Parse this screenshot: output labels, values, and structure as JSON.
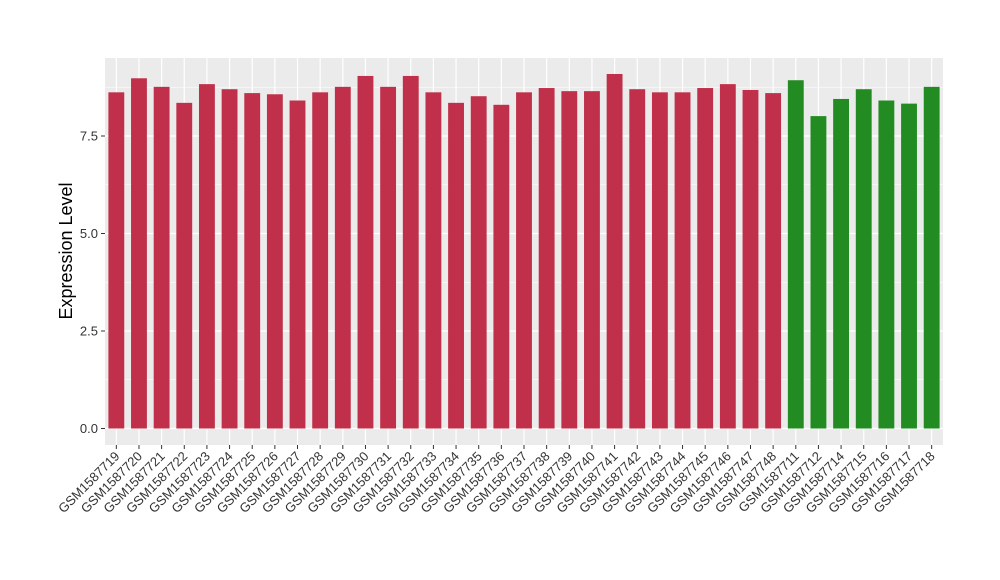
{
  "chart_data": {
    "type": "bar",
    "ylabel": "Expression Level",
    "xlabel": "",
    "ylim": [
      0,
      9.5
    ],
    "yticks": [
      0.0,
      2.5,
      5.0,
      7.5
    ],
    "ytick_labels": [
      "0.0",
      "2.5",
      "5.0",
      "7.5"
    ],
    "grid": true,
    "background": "#EBEBEB",
    "categories": [
      "GSM1587719",
      "GSM1587720",
      "GSM1587721",
      "GSM1587722",
      "GSM1587723",
      "GSM1587724",
      "GSM1587725",
      "GSM1587726",
      "GSM1587727",
      "GSM1587728",
      "GSM1587729",
      "GSM1587730",
      "GSM1587731",
      "GSM1587732",
      "GSM1587733",
      "GSM1587734",
      "GSM1587735",
      "GSM1587736",
      "GSM1587737",
      "GSM1587738",
      "GSM1587739",
      "GSM1587740",
      "GSM1587741",
      "GSM1587742",
      "GSM1587743",
      "GSM1587744",
      "GSM1587745",
      "GSM1587746",
      "GSM1587747",
      "GSM1587748",
      "GSM1587711",
      "GSM1587712",
      "GSM1587714",
      "GSM1587715",
      "GSM1587716",
      "GSM1587717",
      "GSM1587718"
    ],
    "values": [
      8.62,
      8.98,
      8.76,
      8.35,
      8.83,
      8.7,
      8.6,
      8.57,
      8.41,
      8.62,
      8.76,
      9.04,
      8.76,
      9.04,
      8.62,
      8.35,
      8.52,
      8.3,
      8.62,
      8.73,
      8.65,
      8.65,
      9.09,
      8.7,
      8.62,
      8.62,
      8.73,
      8.83,
      8.68,
      8.6,
      8.93,
      8.01,
      8.45,
      8.7,
      8.41,
      8.33,
      8.76
    ],
    "bar_colors": [
      "#C0304A",
      "#C0304A",
      "#C0304A",
      "#C0304A",
      "#C0304A",
      "#C0304A",
      "#C0304A",
      "#C0304A",
      "#C0304A",
      "#C0304A",
      "#C0304A",
      "#C0304A",
      "#C0304A",
      "#C0304A",
      "#C0304A",
      "#C0304A",
      "#C0304A",
      "#C0304A",
      "#C0304A",
      "#C0304A",
      "#C0304A",
      "#C0304A",
      "#C0304A",
      "#C0304A",
      "#C0304A",
      "#C0304A",
      "#C0304A",
      "#C0304A",
      "#C0304A",
      "#C0304A",
      "#228B22",
      "#228B22",
      "#228B22",
      "#228B22",
      "#228B22",
      "#228B22",
      "#228B22"
    ]
  }
}
